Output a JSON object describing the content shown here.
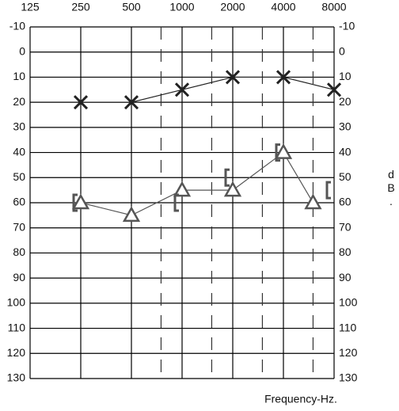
{
  "chart_data": {
    "type": "line",
    "x_label": "Frequency-Hz.",
    "y_label": "Hearing Level - dB.",
    "xscale": "log",
    "xlim": [
      125,
      8000
    ],
    "xticks": [
      125,
      250,
      500,
      1000,
      2000,
      4000,
      8000
    ],
    "minor_xticks": [
      750,
      1500,
      3000,
      6000
    ],
    "ylim": [
      -10,
      130
    ],
    "yticks": [
      -10,
      0,
      10,
      20,
      30,
      40,
      50,
      60,
      70,
      80,
      90,
      100,
      110,
      120,
      130
    ],
    "y_inverted": true,
    "grid": true,
    "series": [
      {
        "marker": "x",
        "color": "#222222",
        "connected": true,
        "x": [
          250,
          500,
          1000,
          2000,
          4000,
          8000
        ],
        "values": [
          20,
          20,
          15,
          10,
          10,
          15
        ]
      },
      {
        "marker": "triangle",
        "color": "#555555",
        "connected": true,
        "x": [
          250,
          500,
          1000,
          2000,
          4000,
          6000
        ],
        "values": [
          60,
          65,
          55,
          55,
          40,
          60
        ]
      },
      {
        "marker": "bracket",
        "color": "#555555",
        "connected": false,
        "x": [
          250,
          1000,
          2000,
          4000,
          8000
        ],
        "values": [
          60,
          60,
          50,
          40,
          55
        ]
      }
    ]
  }
}
